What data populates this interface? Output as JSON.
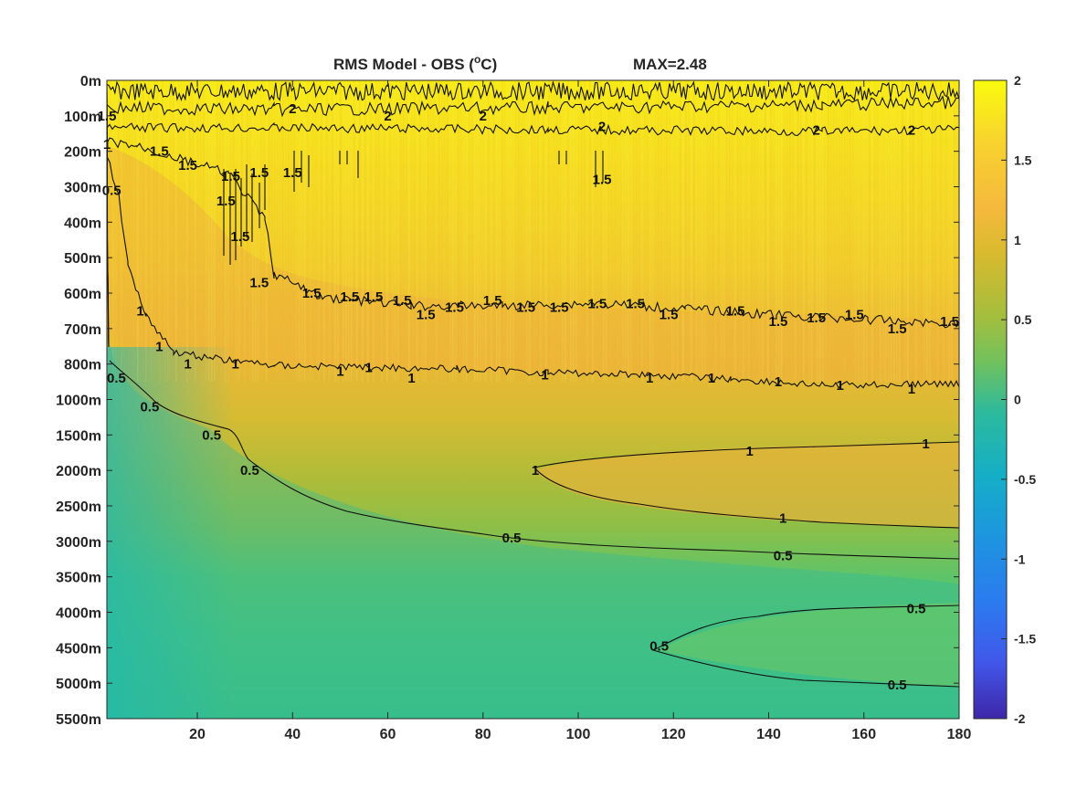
{
  "chart_data": {
    "type": "heatmap",
    "title": "RMS Model - OBS (",
    "title_superscript": "o",
    "title_suffix": "C)",
    "max_label": "MAX=2.48",
    "x_ticks": [
      20,
      40,
      60,
      80,
      100,
      120,
      140,
      160,
      180
    ],
    "xlim": [
      1,
      180
    ],
    "y_ticks": [
      "0m",
      "100m",
      "200m",
      "300m",
      "400m",
      "500m",
      "600m",
      "700m",
      "800m",
      "1000m",
      "1500m",
      "2000m",
      "2500m",
      "3000m",
      "3500m",
      "4000m",
      "4500m",
      "5000m",
      "5500m"
    ],
    "colorbar": {
      "ticks": [
        "2",
        "1.5",
        "1",
        "0.5",
        "0",
        "-0.5",
        "-1",
        "-1.5",
        "-2"
      ],
      "clim": [
        -2,
        2
      ],
      "colormap": "parula"
    },
    "contour_levels": [
      0.5,
      1,
      1.5,
      2
    ],
    "contour_labels": [
      {
        "text": "0.5",
        "x": 2,
        "y_level": 3.1
      },
      {
        "text": "1.5",
        "x": 1,
        "y_level": 1.0
      },
      {
        "text": "1",
        "x": 1,
        "y_level": 1.8
      },
      {
        "text": "1.5",
        "x": 12,
        "y_level": 2.0
      },
      {
        "text": "1.5",
        "x": 18,
        "y_level": 2.4
      },
      {
        "text": "1.5",
        "x": 27,
        "y_level": 2.7
      },
      {
        "text": "1.5",
        "x": 33,
        "y_level": 2.6
      },
      {
        "text": "1.5",
        "x": 40,
        "y_level": 2.6
      },
      {
        "text": "1.5",
        "x": 26,
        "y_level": 3.4
      },
      {
        "text": "1.5",
        "x": 29,
        "y_level": 4.4
      },
      {
        "text": "1.5",
        "x": 33,
        "y_level": 5.7
      },
      {
        "text": "1.5",
        "x": 44,
        "y_level": 6.0
      },
      {
        "text": "1.5",
        "x": 52,
        "y_level": 6.1
      },
      {
        "text": "1.5",
        "x": 57,
        "y_level": 6.1
      },
      {
        "text": "1.5",
        "x": 63,
        "y_level": 6.2
      },
      {
        "text": "1.5",
        "x": 68,
        "y_level": 6.6
      },
      {
        "text": "1.5",
        "x": 74,
        "y_level": 6.4
      },
      {
        "text": "1.5",
        "x": 82,
        "y_level": 6.2
      },
      {
        "text": "1.5",
        "x": 89,
        "y_level": 6.4
      },
      {
        "text": "1.5",
        "x": 96,
        "y_level": 6.4
      },
      {
        "text": "1.5",
        "x": 104,
        "y_level": 6.3
      },
      {
        "text": "1.5",
        "x": 112,
        "y_level": 6.3
      },
      {
        "text": "1.5",
        "x": 119,
        "y_level": 6.6
      },
      {
        "text": "1.5",
        "x": 133,
        "y_level": 6.5
      },
      {
        "text": "1.5",
        "x": 142,
        "y_level": 6.8
      },
      {
        "text": "1.5",
        "x": 150,
        "y_level": 6.7
      },
      {
        "text": "1.5",
        "x": 158,
        "y_level": 6.6
      },
      {
        "text": "1.5",
        "x": 167,
        "y_level": 7.0
      },
      {
        "text": "1.5",
        "x": 178,
        "y_level": 6.8
      },
      {
        "text": "1.5",
        "x": 105,
        "y_level": 2.8
      },
      {
        "text": "1",
        "x": 8,
        "y_level": 6.5
      },
      {
        "text": "1",
        "x": 12,
        "y_level": 7.5
      },
      {
        "text": "1",
        "x": 18,
        "y_level": 8.0
      },
      {
        "text": "1",
        "x": 28,
        "y_level": 8.0
      },
      {
        "text": "1",
        "x": 50,
        "y_level": 8.2
      },
      {
        "text": "1",
        "x": 56,
        "y_level": 8.1
      },
      {
        "text": "1",
        "x": 65,
        "y_level": 8.4
      },
      {
        "text": "1",
        "x": 93,
        "y_level": 8.3
      },
      {
        "text": "1",
        "x": 115,
        "y_level": 8.4
      },
      {
        "text": "1",
        "x": 128,
        "y_level": 8.4
      },
      {
        "text": "1",
        "x": 142,
        "y_level": 8.5
      },
      {
        "text": "1",
        "x": 155,
        "y_level": 8.6
      },
      {
        "text": "1",
        "x": 170,
        "y_level": 8.7
      },
      {
        "text": "0.5",
        "x": 3,
        "y_level": 8.4
      },
      {
        "text": "0.5",
        "x": 10,
        "y_level": 9.2
      },
      {
        "text": "0.5",
        "x": 23,
        "y_level": 10.0
      },
      {
        "text": "0.5",
        "x": 31,
        "y_level": 11.0
      },
      {
        "text": "1",
        "x": 136,
        "y_level": 10.45
      },
      {
        "text": "1",
        "x": 173,
        "y_level": 10.25
      },
      {
        "text": "1",
        "x": 91,
        "y_level": 11.0
      },
      {
        "text": "1",
        "x": 143,
        "y_level": 12.35
      },
      {
        "text": "0.5",
        "x": 86,
        "y_level": 12.9
      },
      {
        "text": "0.5",
        "x": 143,
        "y_level": 13.4
      },
      {
        "text": "0.5",
        "x": 171,
        "y_level": 14.9
      },
      {
        "text": "0.5",
        "x": 117,
        "y_level": 15.95
      },
      {
        "text": "0.5",
        "x": 167,
        "y_level": 17.05
      },
      {
        "text": "2",
        "x": 40,
        "y_level": 0.8
      },
      {
        "text": "2",
        "x": 60,
        "y_level": 1.0
      },
      {
        "text": "2",
        "x": 80,
        "y_level": 1.0
      },
      {
        "text": "2",
        "x": 105,
        "y_level": 1.3
      },
      {
        "text": "2",
        "x": 150,
        "y_level": 1.4
      },
      {
        "text": "2",
        "x": 170,
        "y_level": 1.4
      }
    ]
  }
}
